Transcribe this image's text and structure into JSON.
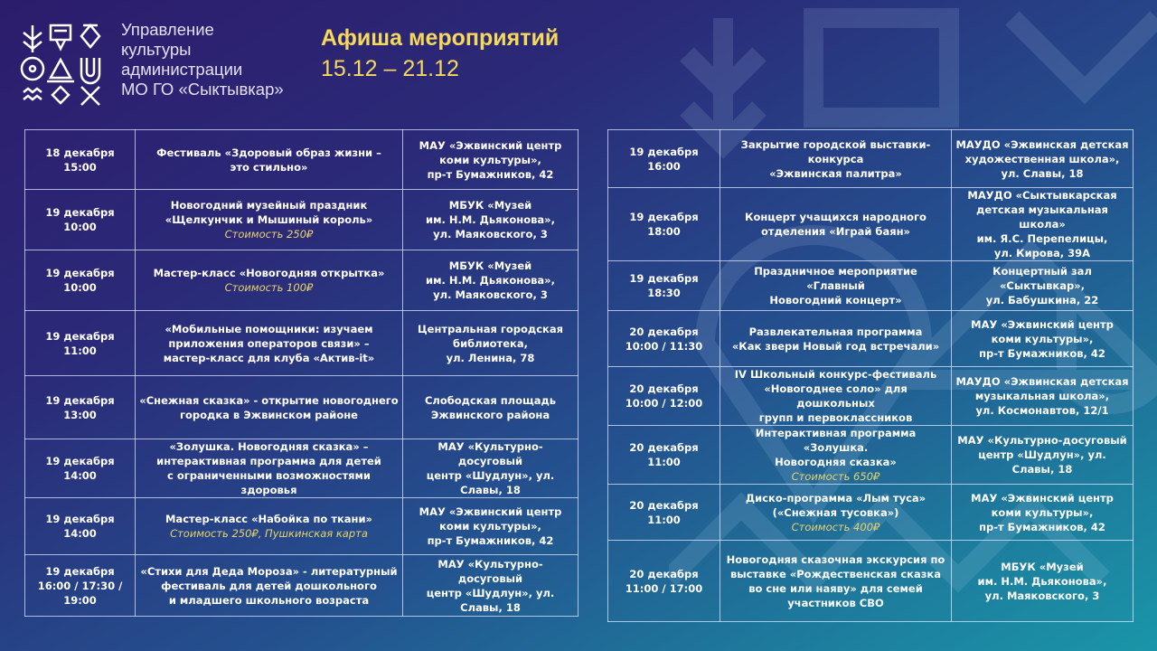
{
  "header": {
    "org_lines": [
      "Управление",
      "культуры",
      "администрации",
      "МО ГО «Сыктывкар»"
    ],
    "title": "Афиша мероприятий",
    "dates": "15.12 – 21.12"
  },
  "colors": {
    "title": "#f6d95a",
    "cost": "#e7d36e",
    "bg_start": "#2c1c6c",
    "bg_end": "#1a95a8"
  },
  "left_events": [
    {
      "date": "18 декабря",
      "time": "15:00",
      "name": [
        "Фестиваль «Здоровый образ жизни –",
        "это стильно»"
      ],
      "cost": "",
      "place": [
        "МАУ «Эжвинский центр",
        "коми культуры»,",
        "пр-т Бумажников, 42"
      ]
    },
    {
      "date": "19 декабря",
      "time": "10:00",
      "name": [
        "Новогодний музейный праздник",
        "«Щелкунчик и Мышиный король»"
      ],
      "cost": "Стоимость 250₽",
      "place": [
        "МБУК «Музей",
        "им. Н.М. Дьяконова»,",
        "ул. Маяковского, 3"
      ]
    },
    {
      "date": "19 декабря",
      "time": "10:00",
      "name": [
        "Мастер-класс «Новогодняя открытка»"
      ],
      "cost": "Стоимость 100₽",
      "place": [
        "МБУК «Музей",
        "им. Н.М. Дьяконова»,",
        "ул. Маяковского, 3"
      ]
    },
    {
      "date": "19 декабря",
      "time": "11:00",
      "name": [
        "«Мобильные помощники: изучаем",
        "приложения операторов связи» –",
        "мастер-класс для клуба «Актив-it»"
      ],
      "cost": "",
      "place": [
        "Центральная городская",
        "библиотека,",
        "ул. Ленина, 78"
      ]
    },
    {
      "date": "19 декабря",
      "time": "13:00",
      "name": [
        "«Снежная сказка» - открытие новогоднего",
        "городка в Эжвинском районе"
      ],
      "cost": "",
      "place": [
        "Слободская площадь",
        "Эжвинского района"
      ]
    },
    {
      "date": "19 декабря",
      "time": "14:00",
      "name": [
        "«Золушка. Новогодняя сказка» –",
        "интерактивная программа для детей",
        "с ограниченными возможностями здоровья"
      ],
      "cost": "",
      "place": [
        "МАУ «Культурно-досуговый",
        "центр «Шудлун», ул. Славы, 18"
      ]
    },
    {
      "date": "19 декабря",
      "time": "14:00",
      "name": [
        "Мастер-класс «Набойка по ткани»"
      ],
      "cost": "Стоимость 250₽, Пушкинская карта",
      "place": [
        "МАУ «Эжвинский центр",
        "коми культуры»,",
        "пр-т Бумажников, 42"
      ]
    },
    {
      "date": "19 декабря",
      "time": "16:00 / 17:30 / 19:00",
      "name": [
        "«Стихи для Деда Мороза» - литературный",
        "фестиваль для детей дошкольного",
        "и младшего школьного возраста"
      ],
      "cost": "",
      "place": [
        "МАУ «Культурно-досуговый",
        "центр «Шудлун», ул. Славы, 18"
      ]
    }
  ],
  "right_events": [
    {
      "date": "19 декабря",
      "time": "16:00",
      "name": [
        "Закрытие городской выставки-конкурса",
        "«Эжвинская палитра»"
      ],
      "cost": "",
      "place": [
        "МАУДО «Эжвинская детская",
        "художественная школа»,",
        "ул. Славы, 18"
      ]
    },
    {
      "date": "19 декабря",
      "time": "18:00",
      "name": [
        "Концерт учащихся народного",
        "отделения «Играй баян»"
      ],
      "cost": "",
      "place": [
        "МАУДО «Сыктывкарская",
        "детская музыкальная школа»",
        "им. Я.С. Перепелицы,",
        "ул. Кирова, 39А"
      ]
    },
    {
      "date": "19 декабря",
      "time": "18:30",
      "name": [
        "Праздничное мероприятие «Главный",
        "Новогодний концерт»"
      ],
      "cost": "",
      "place": [
        "Концертный зал «Сыктывкар»,",
        "ул. Бабушкина, 22"
      ]
    },
    {
      "date": "20 декабря",
      "time": "10:00 / 11:30",
      "name": [
        "Развлекательная программа",
        "«Как звери Новый год встречали»"
      ],
      "cost": "",
      "place": [
        "МАУ «Эжвинский центр",
        "коми культуры»,",
        "пр-т Бумажников, 42"
      ]
    },
    {
      "date": "20 декабря",
      "time": "10:00 / 12:00",
      "name": [
        "IV Школьный конкурс-фестиваль",
        "«Новогоднее соло» для дошкольных",
        "групп и первоклассников"
      ],
      "cost": "",
      "place": [
        "МАУДО «Эжвинская детская",
        "музыкальная школа»,",
        "ул. Космонавтов, 12/1"
      ]
    },
    {
      "date": "20 декабря",
      "time": "11:00",
      "name": [
        "Интерактивная программа «Золушка.",
        "Новогодняя сказка»"
      ],
      "cost": "Стоимость 650₽",
      "place": [
        "МАУ «Культурно-досуговый",
        "центр «Шудлун», ул. Славы, 18"
      ]
    },
    {
      "date": "20 декабря",
      "time": "11:00",
      "name": [
        "Диско-программа «Лым туса»",
        "(«Снежная тусовка»)"
      ],
      "cost": "Стоимость 400₽",
      "place": [
        "МАУ «Эжвинский центр",
        "коми культуры»,",
        "пр-т Бумажников, 42"
      ]
    },
    {
      "date": "20 декабря",
      "time": "11:00 / 17:00",
      "name": [
        "Новогодняя сказочная экскурсия по",
        "выставке «Рождественская сказка",
        "во сне или наяву» для семей",
        "участников СВО"
      ],
      "cost": "",
      "place": [
        "МБУК «Музей",
        "им. Н.М. Дьяконова»,",
        "ул. Маяковского, 3"
      ]
    }
  ]
}
